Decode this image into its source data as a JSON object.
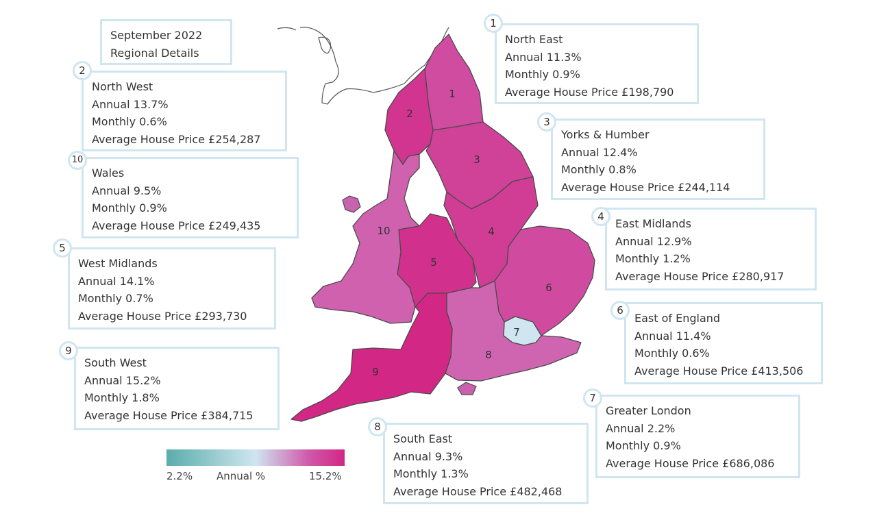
{
  "title": {
    "line1": "September 2022",
    "line2": "Regional Details"
  },
  "colors": {
    "low": "#5aadaa",
    "mid": "#cfe6f1",
    "high": "#d22784",
    "border": "#cfe6f1"
  },
  "regions": [
    {
      "num": "1",
      "name": "North East",
      "annual": "Annual 11.3%",
      "monthly": "Monthly 0.9%",
      "price": "Average House Price £198,790",
      "annual_pct": 11.3
    },
    {
      "num": "2",
      "name": "North West",
      "annual": "Annual 13.7%",
      "monthly": "Monthly 0.6%",
      "price": "Average House Price £254,287",
      "annual_pct": 13.7
    },
    {
      "num": "3",
      "name": "Yorks & Humber",
      "annual": "Annual 12.4%",
      "monthly": "Monthly 0.8%",
      "price": "Average House Price £244,114",
      "annual_pct": 12.4
    },
    {
      "num": "4",
      "name": "East Midlands",
      "annual": "Annual 12.9%",
      "monthly": "Monthly 1.2%",
      "price": "Average House Price £280,917",
      "annual_pct": 12.9
    },
    {
      "num": "5",
      "name": "West Midlands",
      "annual": "Annual 14.1%",
      "monthly": "Monthly 0.7%",
      "price": "Average House Price £293,730",
      "annual_pct": 14.1
    },
    {
      "num": "6",
      "name": "East of England",
      "annual": "Annual 11.4%",
      "monthly": "Monthly 0.6%",
      "price": "Average House Price £413,506",
      "annual_pct": 11.4
    },
    {
      "num": "7",
      "name": "Greater London",
      "annual": "Annual 2.2%",
      "monthly": "Monthly 0.9%",
      "price": "Average House Price £686,086",
      "annual_pct": 2.2
    },
    {
      "num": "8",
      "name": "South East",
      "annual": "Annual 9.3%",
      "monthly": "Monthly 1.3%",
      "price": "Average House Price £482,468",
      "annual_pct": 9.3
    },
    {
      "num": "9",
      "name": "South West",
      "annual": "Annual 15.2%",
      "monthly": "Monthly 1.8%",
      "price": "Average House Price £384,715",
      "annual_pct": 15.2
    },
    {
      "num": "10",
      "name": "Wales",
      "annual": "Annual 9.5%",
      "monthly": "Monthly 0.9%",
      "price": "Average House Price £249,435",
      "annual_pct": 9.5
    }
  ],
  "legend": {
    "min": "2.2%",
    "label": "Annual %",
    "max": "15.2%",
    "min_value": 2.2,
    "max_value": 15.2
  }
}
